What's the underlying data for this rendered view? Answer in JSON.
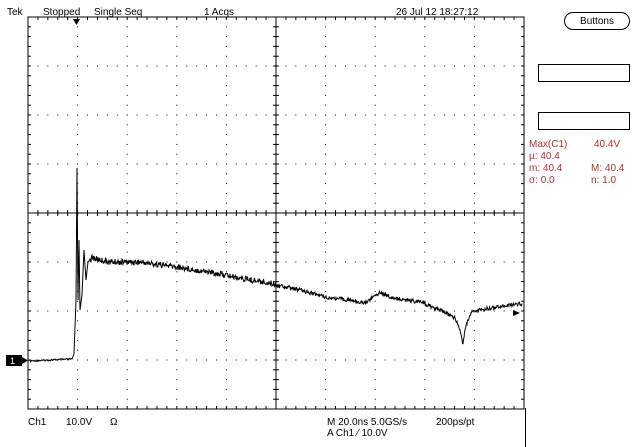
{
  "header": {
    "brand": "Tek",
    "state": "Stopped",
    "mode": "Single Seq",
    "acqs": "1 Acqs",
    "datetime": "26 Jul 12 18:27:12"
  },
  "side_menu": {
    "buttons_label": "Buttons"
  },
  "measurement": {
    "title": "Max(C1)",
    "value": "40.4V",
    "mean": "µ: 40.4",
    "min": "m: 40.4",
    "max": "M: 40.4",
    "stddev": "σ: 0.0",
    "count": "n:  1.0"
  },
  "footer": {
    "channel": "Ch1",
    "volts_div": "10.0V",
    "impedance": "Ω",
    "timebase": "M 20.0ns 5.0GS/s",
    "resolution": "200ps/pt",
    "trigger": "A  Ch1  ⁄  10.0V"
  },
  "ch1_marker": "1",
  "colors": {
    "trace": "#000000",
    "measurement": "#b03030",
    "graticule": "#000000"
  }
}
